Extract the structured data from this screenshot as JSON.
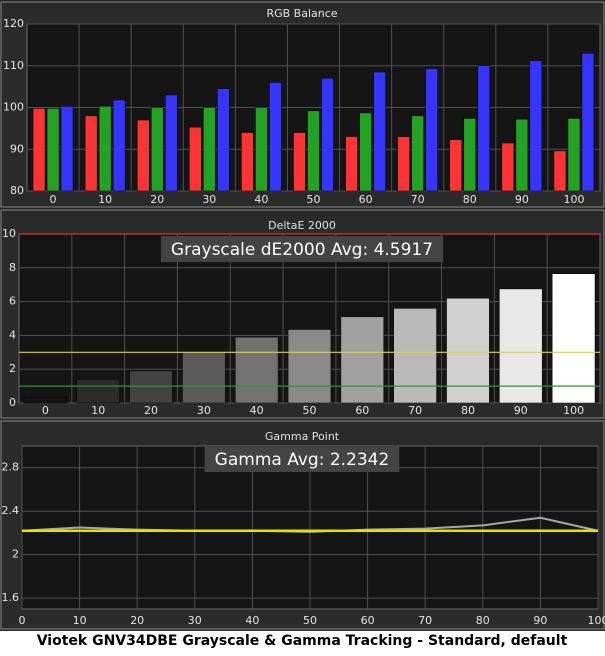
{
  "caption": "Viotek GNV34DBE Grayscale & Gamma Tracking - Standard, default",
  "chart_data": [
    {
      "type": "bar",
      "title": "RGB Balance",
      "categories": [
        "0",
        "10",
        "20",
        "30",
        "40",
        "50",
        "60",
        "70",
        "80",
        "90",
        "100"
      ],
      "series": [
        {
          "color": "#ff3333",
          "values": [
            99.8,
            98,
            97,
            95.3,
            94,
            94,
            93,
            93,
            92.3,
            91.5,
            89.6
          ]
        },
        {
          "color": "#22a322",
          "values": [
            99.8,
            100.3,
            100,
            100,
            100,
            99.2,
            98.7,
            98,
            97.4,
            97.2,
            97.4
          ]
        },
        {
          "color": "#3535ff",
          "values": [
            100.3,
            101.8,
            103,
            104.5,
            106,
            107,
            108.5,
            109.3,
            110,
            111.2,
            113
          ]
        }
      ],
      "ylim": [
        80,
        120
      ],
      "yticks": [
        80,
        90,
        100,
        110,
        120
      ],
      "grid": true
    },
    {
      "type": "bar",
      "title": "DeltaE 2000",
      "annotation": "Grayscale dE2000 Avg: 4.5917",
      "categories": [
        "0",
        "10",
        "20",
        "30",
        "40",
        "50",
        "60",
        "70",
        "80",
        "90",
        "100"
      ],
      "values": [
        0.35,
        1.4,
        1.9,
        3.0,
        3.9,
        4.35,
        5.1,
        5.6,
        6.2,
        6.75,
        7.65
      ],
      "ylim": [
        0,
        10
      ],
      "yticks": [
        0,
        2,
        4,
        6,
        8,
        10
      ],
      "grid": true,
      "reference_lines": [
        {
          "value": 10,
          "color": "#e03030"
        },
        {
          "value": 3,
          "color": "#d8d820"
        },
        {
          "value": 1,
          "color": "#20a020"
        }
      ]
    },
    {
      "type": "line",
      "title": "Gamma Point",
      "annotation": "Gamma Avg: 2.2342",
      "x": [
        0,
        10,
        20,
        30,
        40,
        50,
        60,
        70,
        80,
        90,
        100
      ],
      "values": [
        2.22,
        2.25,
        2.23,
        2.22,
        2.22,
        2.21,
        2.23,
        2.24,
        2.27,
        2.34,
        2.22
      ],
      "color": "#a8a8a8",
      "xlim": [
        0,
        100
      ],
      "xticks": [
        0,
        10,
        20,
        30,
        40,
        50,
        60,
        70,
        80,
        90,
        100
      ],
      "ylim": [
        1.5,
        3.0
      ],
      "yticks": [
        1.6,
        2,
        2.4,
        2.8
      ],
      "grid": true,
      "reference_lines": [
        {
          "value": 2.22,
          "color": "#e8e000"
        }
      ]
    }
  ]
}
